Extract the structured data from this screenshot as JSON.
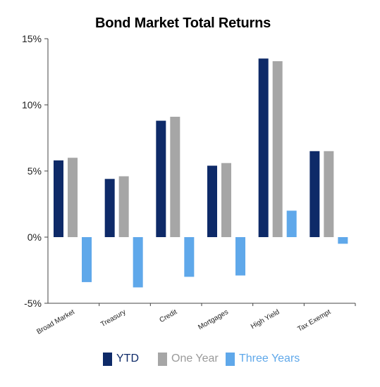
{
  "chart_data": {
    "type": "bar",
    "title": "Bond Market Total Returns",
    "xlabel": "",
    "ylabel": "",
    "ylim": [
      -5,
      15
    ],
    "y_ticks": [
      "15%",
      "10%",
      "5%",
      "0%",
      "-5%"
    ],
    "y_tick_values": [
      15,
      10,
      5,
      0,
      -5
    ],
    "grid": false,
    "legend": "bottom",
    "categories": [
      "Broad Market",
      "Treasury",
      "Credit",
      "Mortgages",
      "High Yield",
      "Tax Exempt"
    ],
    "series": [
      {
        "name": "YTD",
        "color": "#0e2a68",
        "values": [
          5.8,
          4.4,
          8.8,
          5.4,
          13.5,
          6.5
        ]
      },
      {
        "name": "One Year",
        "color": "#a6a6a6",
        "values": [
          6.0,
          4.6,
          9.1,
          5.6,
          13.3,
          6.5
        ]
      },
      {
        "name": "Three Years",
        "color": "#5fa8ea",
        "values": [
          -3.4,
          -3.8,
          -3.0,
          -2.9,
          2.0,
          -0.5
        ]
      }
    ]
  }
}
